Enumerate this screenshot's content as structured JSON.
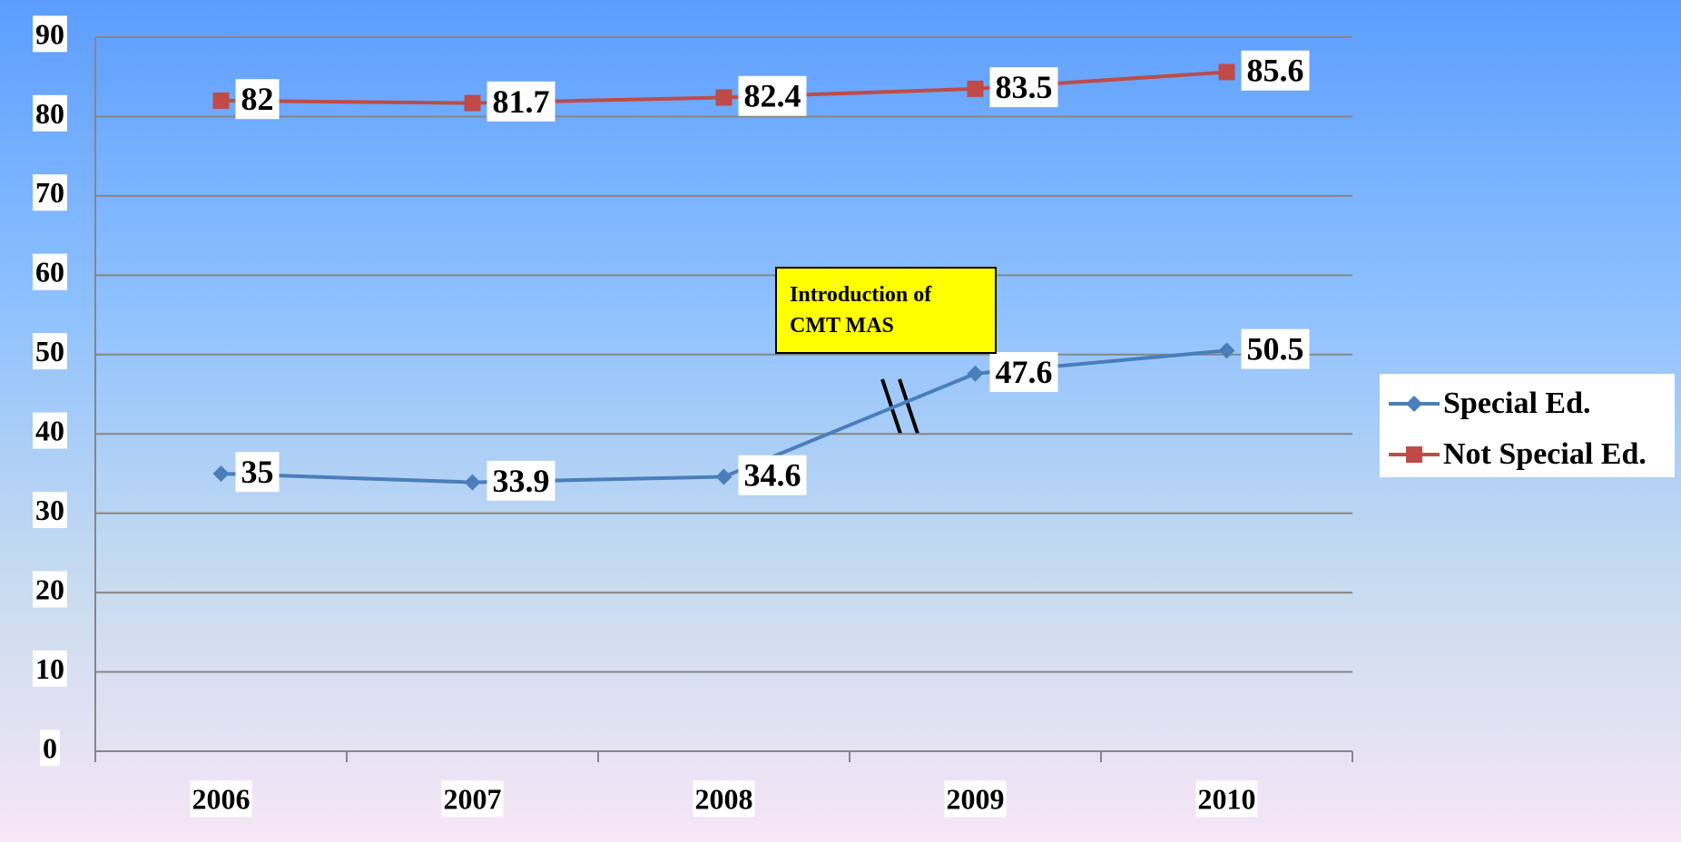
{
  "chart_data": {
    "type": "line",
    "categories": [
      "2006",
      "2007",
      "2008",
      "2009",
      "2010"
    ],
    "series": [
      {
        "name": "Special Ed.",
        "color": "#4a7ebb",
        "marker": "diamond",
        "values": [
          35,
          33.9,
          34.6,
          47.6,
          50.5
        ]
      },
      {
        "name": "Not Special Ed.",
        "color": "#be4b48",
        "marker": "square",
        "values": [
          82,
          81.7,
          82.4,
          83.5,
          85.6
        ]
      }
    ],
    "ylim": [
      0,
      90
    ],
    "yticks": [
      0,
      10,
      20,
      30,
      40,
      50,
      60,
      70,
      80,
      90
    ],
    "grid": true,
    "legend": "right",
    "annotations": [
      {
        "text": "Introduction of CMT MAS"
      }
    ]
  }
}
